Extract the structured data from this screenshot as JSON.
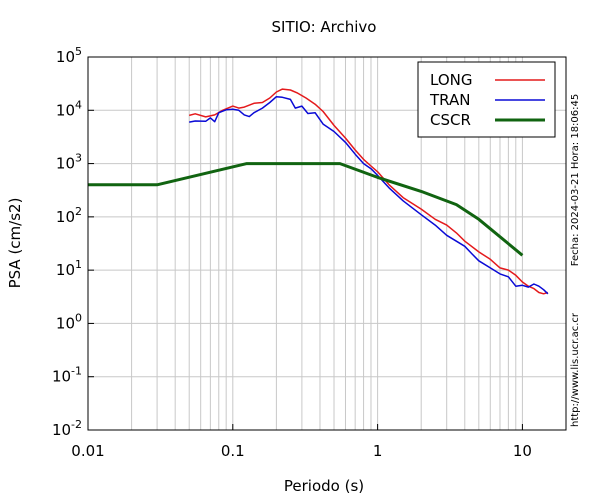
{
  "chart_data": {
    "type": "line",
    "title": "SITIO: Archivo",
    "xlabel": "Periodo (s)",
    "ylabel": "PSA (cm/s2)",
    "x_scale": "log",
    "y_scale": "log",
    "xlim": [
      0.01,
      20
    ],
    "ylim": [
      0.01,
      100000
    ],
    "x_ticks": [
      {
        "value": 0.01,
        "label": "0.01"
      },
      {
        "value": 0.1,
        "label": "0.1"
      },
      {
        "value": 1,
        "label": "1"
      },
      {
        "value": 10,
        "label": "10"
      }
    ],
    "y_ticks": [
      {
        "value": 0.01,
        "base": "10",
        "exp": "-2"
      },
      {
        "value": 0.1,
        "base": "10",
        "exp": "-1"
      },
      {
        "value": 1,
        "base": "10",
        "exp": "0"
      },
      {
        "value": 10,
        "base": "10",
        "exp": "1"
      },
      {
        "value": 100,
        "base": "10",
        "exp": "2"
      },
      {
        "value": 1000,
        "base": "10",
        "exp": "3"
      },
      {
        "value": 10000,
        "base": "10",
        "exp": "4"
      },
      {
        "value": 100000,
        "base": "10",
        "exp": "5"
      }
    ],
    "grid": true,
    "legend_position": "top-right",
    "side_texts": {
      "date": "Fecha: 2024-03-21 Hora: 18:06:45",
      "url": "http://www.lis.ucr.ac.cr"
    },
    "series": [
      {
        "name": "LONG",
        "color": "#e41a1c",
        "width": 1.5,
        "x": [
          0.05,
          0.055,
          0.065,
          0.075,
          0.085,
          0.1,
          0.11,
          0.12,
          0.14,
          0.16,
          0.18,
          0.2,
          0.22,
          0.25,
          0.28,
          0.32,
          0.37,
          0.42,
          0.5,
          0.6,
          0.7,
          0.8,
          0.9,
          1.0,
          1.2,
          1.5,
          2.0,
          2.5,
          3.0,
          3.5,
          4.0,
          5.0,
          6.0,
          7.0,
          8.0,
          9.0,
          10.0,
          11.0,
          12.0,
          13.0,
          14.0,
          15.0
        ],
        "y": [
          8000,
          8600,
          7500,
          8200,
          10000,
          12000,
          11000,
          11500,
          13500,
          14000,
          17000,
          22000,
          25000,
          24000,
          21000,
          17000,
          13000,
          9500,
          5200,
          3000,
          1800,
          1200,
          900,
          700,
          400,
          230,
          140,
          90,
          70,
          50,
          35,
          22,
          16,
          11,
          10,
          8,
          6,
          5,
          4.5,
          3.8,
          3.6,
          3.8
        ]
      },
      {
        "name": "TRAN",
        "color": "#0a0ad6",
        "width": 1.5,
        "x": [
          0.05,
          0.055,
          0.065,
          0.07,
          0.075,
          0.08,
          0.09,
          0.1,
          0.11,
          0.12,
          0.13,
          0.14,
          0.16,
          0.18,
          0.2,
          0.22,
          0.25,
          0.27,
          0.3,
          0.33,
          0.37,
          0.42,
          0.5,
          0.6,
          0.7,
          0.8,
          0.9,
          1.0,
          1.2,
          1.5,
          2.0,
          2.5,
          3.0,
          3.5,
          4.0,
          4.5,
          5.0,
          6.0,
          7.0,
          8.0,
          9.0,
          10.0,
          11.0,
          12.0,
          13.0,
          14.0,
          15.0
        ],
        "y": [
          6000,
          6300,
          6200,
          7200,
          6100,
          9000,
          10200,
          10500,
          10000,
          8200,
          7600,
          9000,
          11000,
          14000,
          18000,
          17500,
          16000,
          11000,
          12000,
          8700,
          9000,
          5500,
          4000,
          2500,
          1500,
          1000,
          800,
          600,
          350,
          200,
          110,
          70,
          45,
          35,
          28,
          20,
          15,
          11,
          8.5,
          7.5,
          5,
          5.2,
          4.8,
          5.5,
          5,
          4.3,
          3.6
        ]
      },
      {
        "name": "CSCR",
        "color": "#116411",
        "width": 3,
        "x": [
          0.01,
          0.03,
          0.125,
          0.55,
          1.0,
          2.0,
          3.5,
          5.0,
          10.0
        ],
        "y": [
          400,
          400,
          1000,
          1000,
          550,
          300,
          170,
          90,
          19
        ]
      }
    ]
  }
}
